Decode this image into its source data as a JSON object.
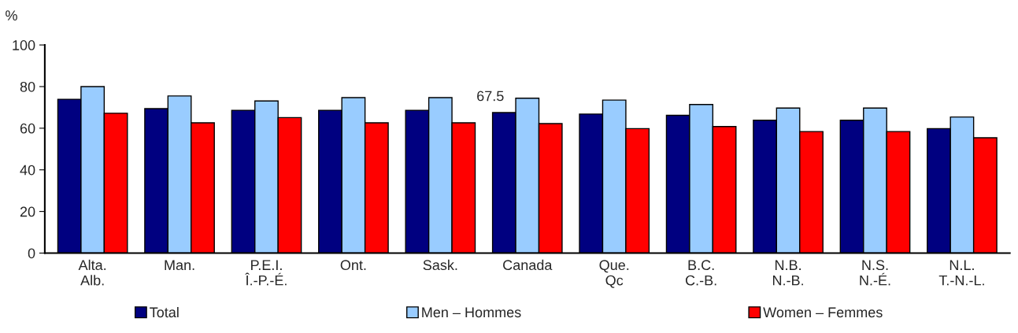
{
  "chart_data": {
    "type": "bar",
    "ylabel": "%",
    "categories": [
      "Alta.\nAlb.",
      "Man.",
      "P.E.I.\nÎ.-P.-É.",
      "Ont.",
      "Sask.",
      "Canada",
      "Que.\nQc",
      "B.C.\nC.-B.",
      "N.B.\nN.-B.",
      "N.S.\nN.-É.",
      "N.L.\nT.-N.-L."
    ],
    "series": [
      {
        "name": "Total",
        "color": "#000080",
        "values": [
          73.9,
          69.4,
          68.6,
          68.6,
          68.6,
          67.5,
          66.8,
          66.2,
          63.8,
          63.8,
          59.8
        ],
        "value_labels": [
          null,
          null,
          null,
          null,
          null,
          "67.5",
          null,
          null,
          null,
          null,
          null
        ]
      },
      {
        "name": "Men – Hommes",
        "color": "#99ccff",
        "values": [
          80.0,
          75.5,
          73.1,
          74.7,
          74.7,
          74.4,
          73.5,
          71.4,
          69.7,
          69.7,
          65.4
        ]
      },
      {
        "name": "Women – Femmes",
        "color": "#ff0000",
        "values": [
          67.2,
          62.6,
          65.1,
          62.6,
          62.6,
          62.2,
          59.8,
          60.8,
          58.4,
          58.4,
          55.4
        ]
      }
    ],
    "ylim": [
      0,
      100
    ],
    "yticks": [
      0,
      20,
      40,
      60,
      80,
      100
    ],
    "grid": false,
    "legend": "bottom"
  }
}
